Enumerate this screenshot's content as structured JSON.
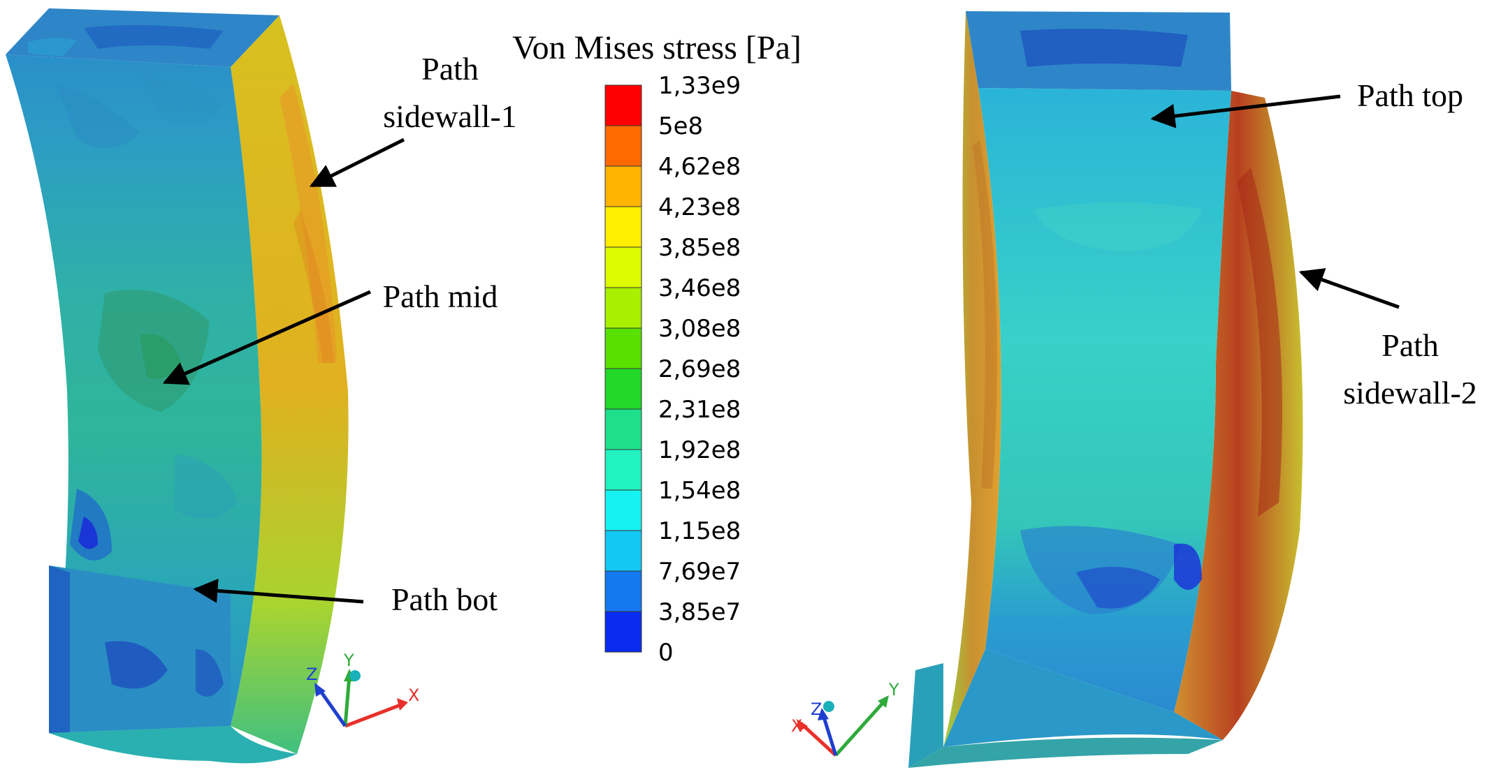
{
  "legend": {
    "title": "Von Mises stress [Pa]",
    "levels": [
      "1,33e9",
      "5e8",
      "4,62e8",
      "4,23e8",
      "3,85e8",
      "3,46e8",
      "3,08e8",
      "2,69e8",
      "2,31e8",
      "1,92e8",
      "1,54e8",
      "1,15e8",
      "7,69e7",
      "3,85e7",
      "0"
    ],
    "colors": [
      "#ff0000",
      "#ff6a00",
      "#ffb400",
      "#ffee00",
      "#dcfa00",
      "#a8f000",
      "#5ae000",
      "#22d828",
      "#1ee08a",
      "#22f2c0",
      "#16f2f2",
      "#14c8f4",
      "#1478f0",
      "#0a2cf0"
    ]
  },
  "labels": {
    "sidewall1": [
      "Path",
      "sidewall-1"
    ],
    "mid": "Path mid",
    "bot": "Path bot",
    "top": "Path top",
    "sidewall2": [
      "Path",
      "sidewall-2"
    ]
  },
  "triad_left": {
    "z": "Z",
    "y": "Y",
    "x": "X"
  },
  "triad_right": {
    "z": "Z",
    "x": "X",
    "y": "Y"
  },
  "colors": {
    "axis_x": "#e8302a",
    "axis_y": "#2eaa3a",
    "axis_z": "#1f3fd0",
    "origin": "#1ab0b8"
  }
}
